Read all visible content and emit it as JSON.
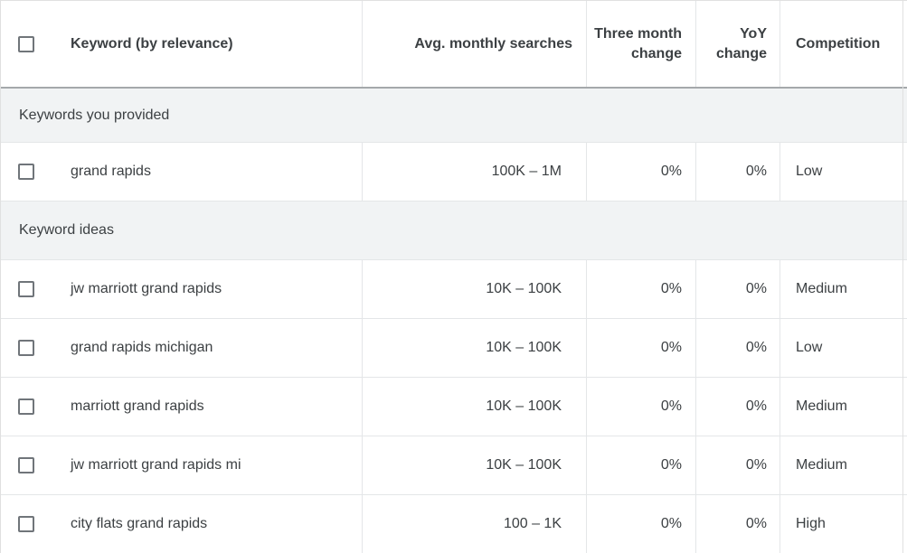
{
  "header": {
    "columns": {
      "keyword": "Keyword (by relevance)",
      "avg_monthly_searches": "Avg. monthly searches",
      "three_month_change": "Three month change",
      "yoy_change": "YoY change",
      "competition": "Competition"
    }
  },
  "sections": [
    {
      "label": "Keywords you provided"
    },
    {
      "label": "Keyword ideas"
    }
  ],
  "rows": [
    {
      "keyword": "grand rapids",
      "avg_monthly_searches": "100K – 1M",
      "three_month_change": "0%",
      "yoy_change": "0%",
      "competition": "Low"
    },
    {
      "keyword": "jw marriott grand rapids",
      "avg_monthly_searches": "10K – 100K",
      "three_month_change": "0%",
      "yoy_change": "0%",
      "competition": "Medium"
    },
    {
      "keyword": "grand rapids michigan",
      "avg_monthly_searches": "10K – 100K",
      "three_month_change": "0%",
      "yoy_change": "0%",
      "competition": "Low"
    },
    {
      "keyword": "marriott grand rapids",
      "avg_monthly_searches": "10K – 100K",
      "three_month_change": "0%",
      "yoy_change": "0%",
      "competition": "Medium"
    },
    {
      "keyword": "jw marriott grand rapids mi",
      "avg_monthly_searches": "10K – 100K",
      "three_month_change": "0%",
      "yoy_change": "0%",
      "competition": "Medium"
    },
    {
      "keyword": "city flats grand rapids",
      "avg_monthly_searches": "100 – 1K",
      "three_month_change": "0%",
      "yoy_change": "0%",
      "competition": "High"
    }
  ],
  "checkbox_states": {
    "select_all": false,
    "rows": [
      false,
      false,
      false,
      false,
      false,
      false
    ]
  },
  "colors": {
    "text": "#3c4043",
    "section_background": "#f1f3f4",
    "divider": "#e0e0e0",
    "header_divider": "#a5a8ab",
    "checkbox_border": "#70757a"
  }
}
